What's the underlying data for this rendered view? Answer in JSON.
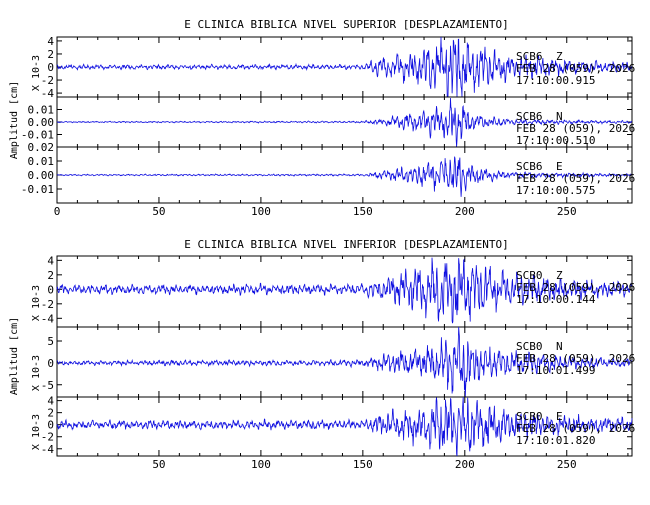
{
  "chart_data": [
    {
      "type": "line",
      "title": "E CLINICA BIBLICA NIVEL SUPERIOR [DESPLAZAMIENTO]",
      "ylabel": "Amplitud [cm]",
      "xlim": [
        0,
        282
      ],
      "x_ticks": [
        0,
        50,
        100,
        150,
        200,
        250
      ],
      "x_tick_labels": [
        "0",
        "50",
        "100",
        "150",
        "200",
        "250"
      ],
      "color": "#1010e0",
      "traces": [
        {
          "station": "SCB6",
          "component": "Z",
          "date": "FEB 28 (059), 2026",
          "time": "17:10:00.915",
          "scale_label": "X 10-3",
          "ylim": [
            -4.6,
            4.6
          ],
          "y_ticks": [
            4,
            2,
            0,
            -2,
            -4
          ],
          "y_tick_labels": [
            "4",
            "2",
            "0",
            "-2",
            "-4"
          ],
          "envelope": [
            [
              0,
              0.3
            ],
            [
              150,
              0.3
            ],
            [
              158,
              1.3
            ],
            [
              185,
              2.8
            ],
            [
              197,
              5.0
            ],
            [
              203,
              3.0
            ],
            [
              222,
              1.6
            ],
            [
              250,
              1.0
            ],
            [
              282,
              0.6
            ]
          ],
          "seed": 11
        },
        {
          "station": "SCB6",
          "component": "N",
          "date": "FEB 28 (059), 2026",
          "time": "17:10:00.510",
          "scale_label": "",
          "ylim": [
            -0.02,
            0.02
          ],
          "y_ticks": [
            0.01,
            0.0,
            -0.01
          ],
          "y_tick_labels": [
            "0.01",
            "0.00",
            "-0.01"
          ],
          "envelope": [
            [
              0,
              0.0004
            ],
            [
              150,
              0.0006
            ],
            [
              158,
              0.002
            ],
            [
              185,
              0.009
            ],
            [
              197,
              0.015
            ],
            [
              205,
              0.005
            ],
            [
              222,
              0.0022
            ],
            [
              250,
              0.0012
            ],
            [
              282,
              0.0008
            ]
          ],
          "seed": 23
        },
        {
          "station": "SCB6",
          "component": "E",
          "date": "FEB 28 (059), 2026",
          "time": "17:10:00.575",
          "scale_label": "",
          "ylim": [
            -0.02,
            0.02
          ],
          "y_ticks": [
            0.02,
            0.01,
            0.0,
            -0.01
          ],
          "y_tick_labels": [
            "0.02",
            "0.01",
            "0.00",
            "-0.01"
          ],
          "envelope": [
            [
              0,
              0.0004
            ],
            [
              150,
              0.0006
            ],
            [
              158,
              0.002
            ],
            [
              185,
              0.008
            ],
            [
              197,
              0.014
            ],
            [
              205,
              0.005
            ],
            [
              222,
              0.002
            ],
            [
              250,
              0.0012
            ],
            [
              282,
              0.0008
            ]
          ],
          "seed": 37
        }
      ]
    },
    {
      "type": "line",
      "title": "E CLINICA BIBLICA NIVEL INFERIOR [DESPLAZAMIENTO]",
      "ylabel": "Amplitud [cm]",
      "xlim": [
        0,
        282
      ],
      "x_ticks": [
        50,
        100,
        150,
        200,
        250
      ],
      "x_tick_labels": [
        "50",
        "100",
        "150",
        "200",
        "250"
      ],
      "color": "#1010e0",
      "traces": [
        {
          "station": "SCB0",
          "component": "Z",
          "date": "FEB 28 (059), 2026",
          "time": "17:10:00.144",
          "scale_label": "X 10-3",
          "ylim": [
            -5.2,
            4.6
          ],
          "y_ticks": [
            4,
            2,
            0,
            -2,
            -4
          ],
          "y_tick_labels": [
            "4",
            "2",
            "0",
            "-2",
            "-4"
          ],
          "envelope": [
            [
              0,
              0.5
            ],
            [
              150,
              0.6
            ],
            [
              158,
              1.2
            ],
            [
              180,
              2.8
            ],
            [
              197,
              4.6
            ],
            [
              205,
              3.0
            ],
            [
              222,
              2.0
            ],
            [
              250,
              1.2
            ],
            [
              282,
              0.8
            ]
          ],
          "seed": 41
        },
        {
          "station": "SCB0",
          "component": "N",
          "date": "FEB 28 (059), 2026",
          "time": "17:10:01.499",
          "scale_label": "X 10-3",
          "ylim": [
            -7.8,
            8.2
          ],
          "y_ticks": [
            5,
            0,
            -5
          ],
          "y_tick_labels": [
            "5",
            "0",
            "-5"
          ],
          "envelope": [
            [
              0,
              0.4
            ],
            [
              150,
              0.6
            ],
            [
              158,
              1.5
            ],
            [
              185,
              3.5
            ],
            [
              199,
              7.5
            ],
            [
              205,
              3.8
            ],
            [
              222,
              2.5
            ],
            [
              250,
              1.3
            ],
            [
              282,
              0.8
            ]
          ],
          "seed": 53
        },
        {
          "station": "SCB0",
          "component": "E",
          "date": "FEB 28 (059), 2026",
          "time": "17:10:01.820",
          "scale_label": "X 10-3",
          "ylim": [
            -5.2,
            4.6
          ],
          "y_ticks": [
            4,
            2,
            0,
            -2,
            -4
          ],
          "y_tick_labels": [
            "4",
            "2",
            "0",
            "-2",
            "-4"
          ],
          "envelope": [
            [
              0,
              0.6
            ],
            [
              150,
              0.6
            ],
            [
              158,
              1.4
            ],
            [
              185,
              3.2
            ],
            [
              199,
              4.8
            ],
            [
              207,
              3.2
            ],
            [
              222,
              2.0
            ],
            [
              250,
              1.3
            ],
            [
              282,
              0.9
            ]
          ],
          "seed": 67
        }
      ]
    }
  ]
}
